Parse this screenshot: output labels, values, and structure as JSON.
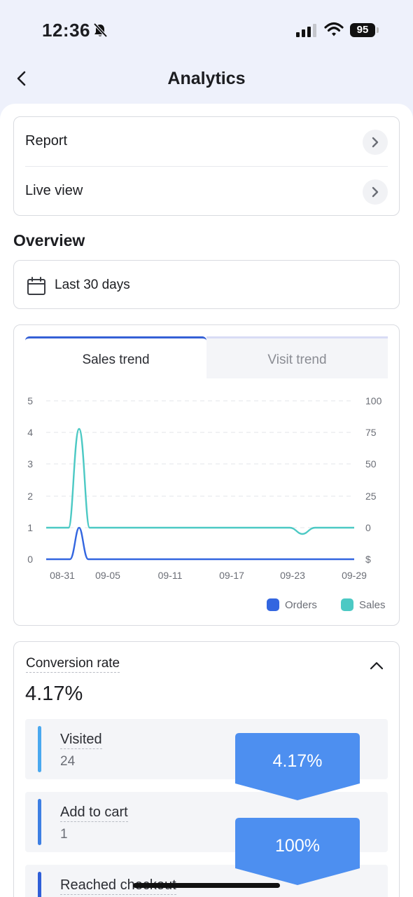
{
  "status_bar": {
    "time": "12:36",
    "battery": "95"
  },
  "nav": {
    "title": "Analytics"
  },
  "menu": {
    "items": [
      {
        "label": "Report"
      },
      {
        "label": "Live view"
      }
    ]
  },
  "overview": {
    "title": "Overview",
    "date_range": "Last 30 days"
  },
  "chart_tabs": [
    {
      "label": "Sales trend",
      "active": true
    },
    {
      "label": "Visit trend",
      "active": false
    }
  ],
  "chart_data": {
    "type": "line",
    "x": [
      "08-31",
      "09-05",
      "09-11",
      "09-17",
      "09-23",
      "09-29"
    ],
    "y_left": {
      "ticks": [
        "0",
        "1",
        "2",
        "3",
        "4",
        "5"
      ],
      "range": [
        0,
        5
      ]
    },
    "y_right": {
      "ticks": [
        "$",
        "0",
        "25",
        "50",
        "75",
        "100"
      ]
    },
    "series": [
      {
        "name": "Orders",
        "color": "#3366e0",
        "axis": "left",
        "note": "spike at ~09-02 to 1, otherwise 0"
      },
      {
        "name": "Sales",
        "color": "#4cc9c4",
        "axis": "right",
        "note": "spike at ~09-02 to ~75, small dip near 09-24, otherwise 0"
      }
    ],
    "legend_position": "bottom-right",
    "grid": true
  },
  "conversion": {
    "title": "Conversion rate",
    "value": "4.17%",
    "stages": [
      {
        "label": "Visited",
        "count": "24",
        "color": "#4aa8ef"
      },
      {
        "label": "Add to cart",
        "count": "1",
        "color": "#3d7fe3"
      },
      {
        "label": "Reached checkout",
        "count": "",
        "color": "#2f5fd8"
      }
    ],
    "funnel": [
      {
        "pct": "4.17%"
      },
      {
        "pct": "100%"
      }
    ]
  }
}
